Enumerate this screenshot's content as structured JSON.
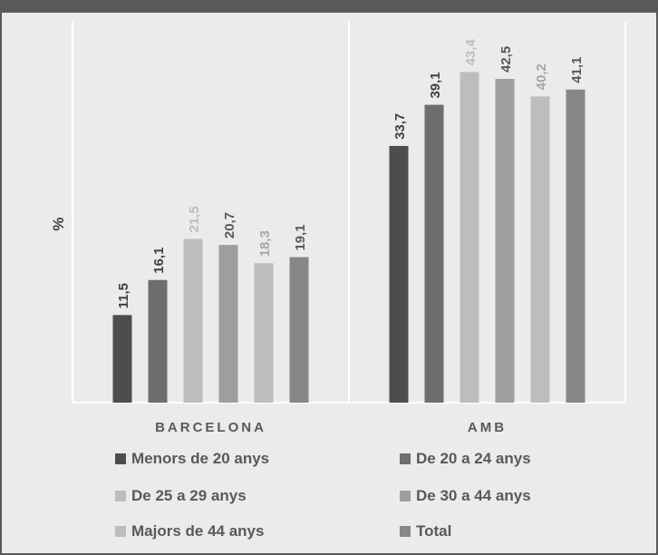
{
  "chart_data": {
    "type": "bar",
    "title": "",
    "ylabel": "%",
    "xlabel": "",
    "ylim": [
      0,
      50
    ],
    "grid": false,
    "legend_position": "bottom",
    "categories": [
      "BARCELONA",
      "AMB"
    ],
    "series": [
      {
        "name": "Menors de 20 anys",
        "values": [
          11.5,
          33.7
        ],
        "labels": [
          "11,5",
          "33,7"
        ],
        "color": "#4d4d4d",
        "label_color": "#404040"
      },
      {
        "name": "De 20 a 24 anys",
        "values": [
          16.1,
          39.1
        ],
        "labels": [
          "16,1",
          "39,1"
        ],
        "color": "#6e6e6e",
        "label_color": "#404040"
      },
      {
        "name": "De 25 a 29 anys",
        "values": [
          21.5,
          43.4
        ],
        "labels": [
          "21,5",
          "43,4"
        ],
        "color": "#bdbdbd",
        "label_color": "#bdbdbd"
      },
      {
        "name": "De 30 a 44 anys",
        "values": [
          20.7,
          42.5
        ],
        "labels": [
          "20,7",
          "42,5"
        ],
        "color": "#9e9e9e",
        "label_color": "#595959"
      },
      {
        "name": "Majors de 44 anys",
        "values": [
          18.3,
          40.2
        ],
        "labels": [
          "18,3",
          "40,2"
        ],
        "color": "#bdbdbd",
        "label_color": "#a6a6a6"
      },
      {
        "name": "Total",
        "values": [
          19.1,
          41.1
        ],
        "labels": [
          "19,1",
          "41,1"
        ],
        "color": "#878787",
        "label_color": "#595959"
      }
    ]
  }
}
